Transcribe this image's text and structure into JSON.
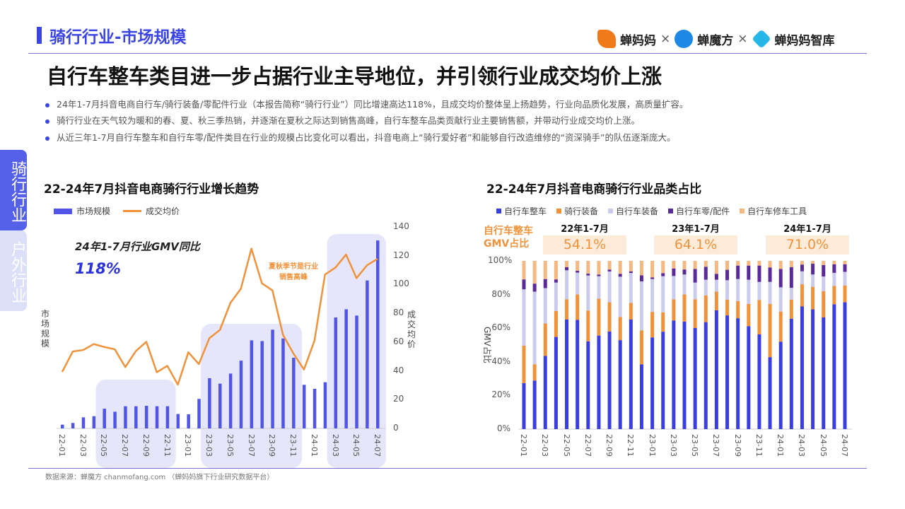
{
  "header": {
    "title": "骑行行业-市场规模",
    "headline": "自行车整车类目进一步占据行业主导地位，并引领行业成交均价上涨",
    "logos": [
      "蝉妈妈",
      "蝉魔方",
      "蝉妈妈智库"
    ],
    "separator": "×"
  },
  "bullets": [
    "24年1-7月抖音电商自行车/骑行装备/零配件行业（本报告简称“骑行行业”）同比增速高达118%，且成交均价整体呈上扬趋势，行业向品质化发展，高质量扩容。",
    "骑行行业在天气较为暖和的春、夏、秋三季热销，并逐渐在夏秋之际达到销售高峰，自行车整车品类贡献行业主要销售额，并带动行业成交均价上涨。",
    "从近三年1-7月自行车整车和自行车零/配件类目在行业的规模占比变化可以看出，抖音电商上“骑行爱好者”和能够自行改造维修的“资深骑手”的队伍逐渐庞大。"
  ],
  "side_tabs": [
    {
      "label": "骑行行业",
      "active": true
    },
    {
      "label": "户外行业",
      "active": false
    }
  ],
  "footer": "数据来源：蝉魔方 chanmofang.com （蝉妈妈旗下行业研究数据平台）",
  "colors": {
    "accent": "#3b45e6",
    "orange": "#f0923a"
  },
  "chart_data": [
    {
      "type": "bar+line",
      "title": "22-24年7月抖音电商骑行行业增长趋势",
      "categories": [
        "22-01",
        "22-02",
        "22-03",
        "22-04",
        "22-05",
        "22-06",
        "22-07",
        "22-08",
        "22-09",
        "22-10",
        "22-11",
        "22-12",
        "23-01",
        "23-02",
        "23-03",
        "23-04",
        "23-05",
        "23-06",
        "23-07",
        "23-08",
        "23-09",
        "23-10",
        "23-11",
        "23-12",
        "24-01",
        "24-02",
        "24-03",
        "24-04",
        "24-05",
        "24-06",
        "24-07"
      ],
      "xticks": [
        "22-01",
        "22-03",
        "22-05",
        "22-07",
        "22-09",
        "22-11",
        "23-01",
        "23-03",
        "23-05",
        "23-07",
        "23-09",
        "23-11",
        "24-01",
        "24-03",
        "24-05",
        "24-07"
      ],
      "series": [
        {
          "name": "市场规模",
          "type": "bar",
          "axis": "left",
          "color": "#5055e8",
          "values": [
            2.6,
            3.8,
            7.7,
            8.5,
            13.7,
            11.6,
            15.4,
            15.4,
            15.7,
            15.4,
            15.4,
            10,
            9.8,
            20.5,
            34.9,
            31.1,
            38.1,
            47.1,
            61.2,
            60.7,
            68.6,
            62.5,
            49.1,
            30.3,
            27.5,
            32.1,
            77.1,
            82.8,
            78.4,
            102.8,
            130.6
          ]
        },
        {
          "name": "成交均价",
          "type": "line",
          "axis": "right",
          "color": "#f0923a",
          "values": [
            39.3,
            53.4,
            54.5,
            58.6,
            56.6,
            55,
            42.6,
            53.7,
            60.2,
            39,
            43.5,
            30.4,
            52.9,
            44.7,
            62.7,
            68.4,
            87.2,
            97.1,
            124.9,
            100.8,
            95.9,
            65.1,
            52,
            40.9,
            61,
            106.9,
            111.8,
            120.8,
            104.4,
            113.4,
            117.8
          ]
        }
      ],
      "ylabel_left": "市场规模",
      "ylabel_right": "成交均价",
      "yright_ticks": [
        0,
        20,
        40,
        60,
        80,
        100,
        120,
        140
      ],
      "yright_lim": [
        0,
        140
      ],
      "highlights": [
        [
          "22-05",
          "22-11"
        ],
        [
          "23-03",
          "23-11"
        ],
        [
          "24-03",
          "24-07"
        ]
      ],
      "annotations": {
        "gmv_label": "24年1-7月行业GMV同比",
        "gmv_value": "118%",
        "peak_note_1": "夏秋季节是行业",
        "peak_note_2": "销售高峰"
      },
      "legend": "top-left"
    },
    {
      "type": "stacked-bar-100",
      "title": "22-24年7月抖音电商骑行行业品类占比",
      "ylabel": "GMV占比",
      "yticks": [
        "0%",
        "20%",
        "40%",
        "60%",
        "80%",
        "100%"
      ],
      "ylim": [
        0,
        100
      ],
      "xticks": [
        "22-01",
        "22-03",
        "22-05",
        "22-07",
        "22-09",
        "22-11",
        "23-01",
        "23-03",
        "23-05",
        "23-07",
        "23-09",
        "23-11",
        "24-01",
        "24-03",
        "24-05",
        "24-07"
      ],
      "series": [
        {
          "name": "自行车整车",
          "color": "#3a3ee0",
          "values": [
            27.4,
            28.9,
            43.5,
            54.8,
            65.2,
            64.9,
            52.2,
            55.6,
            58,
            52.9,
            65.2,
            38.5,
            54.5,
            57.9,
            64.5,
            63.9,
            60.1,
            63.6,
            70.6,
            67.6,
            65.9,
            61.2,
            56.3,
            42.8,
            52,
            65.6,
            72.9,
            71.2,
            66.4,
            74.2,
            75.4
          ]
        },
        {
          "name": "骑行装备",
          "color": "#f0923a",
          "values": [
            22.2,
            9.7,
            19.3,
            15.4,
            12,
            15.2,
            18.3,
            21.9,
            17.4,
            13.8,
            9.8,
            20.2,
            15.2,
            11.5,
            12.7,
            16.2,
            17.1,
            15.8,
            11.1,
            9.4,
            10.2,
            13.2,
            20.5,
            31.6,
            17.9,
            11.4,
            13.2,
            13.4,
            15.6,
            10.9,
            9.9
          ]
        },
        {
          "name": "自行车装备",
          "color": "#cbcbee",
          "values": [
            33.5,
            43.1,
            21,
            16.9,
            17.2,
            12.9,
            20.8,
            13.4,
            18.3,
            23.9,
            17.8,
            29.1,
            19.5,
            21.5,
            13.8,
            11.8,
            9.9,
            9.4,
            7.1,
            11.5,
            13.1,
            14.4,
            10.7,
            13.1,
            14.4,
            7,
            7.7,
            7.3,
            8.7,
            7.8,
            8.2
          ]
        },
        {
          "name": "自行车零/配件",
          "color": "#5b2a9a",
          "values": [
            5.9,
            4.8,
            5.4,
            1.9,
            1.9,
            1.1,
            1.1,
            1,
            1.1,
            1.7,
            1,
            3.6,
            1,
            1.8,
            4.5,
            3,
            8.1,
            7.7,
            3.5,
            6.2,
            8,
            8.4,
            9.7,
            8.6,
            10.9,
            12.3,
            4,
            6.4,
            6.8,
            5.1,
            4.5
          ]
        },
        {
          "name": "自行车修车工具",
          "color": "#f4b880",
          "values": [
            11,
            13.5,
            10.8,
            11,
            3.7,
            5.9,
            7.6,
            8.1,
            5.2,
            7.7,
            6.2,
            8.6,
            9.8,
            7.3,
            4.5,
            5.1,
            4.8,
            3.5,
            7.7,
            5.3,
            2.8,
            2.8,
            2.8,
            3.9,
            4.8,
            3.7,
            2.2,
            1.7,
            2.5,
            2,
            2
          ]
        }
      ],
      "side_label": "自行车整车 GMV占比",
      "side_label_1": "自行车整车",
      "side_label_2": "GMV占比",
      "groups": [
        {
          "label": "22年1-7月",
          "value": "54.1%"
        },
        {
          "label": "23年1-7月",
          "value": "64.1%"
        },
        {
          "label": "24年1-7月",
          "value": "71.0%"
        }
      ],
      "legend": "top"
    }
  ]
}
